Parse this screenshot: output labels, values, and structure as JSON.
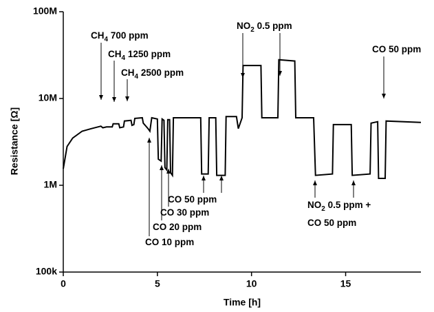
{
  "chart_data": {
    "type": "line",
    "x_label": "Time [h]",
    "y_label": "Resistance [Ω]",
    "xlim": [
      0,
      19
    ],
    "xticks": [
      0,
      5,
      10,
      15
    ],
    "ylim": [
      100000,
      100000000
    ],
    "log_y": true,
    "yticks": [
      {
        "value": 100000,
        "label": "100k"
      },
      {
        "value": 1000000,
        "label": "1M"
      },
      {
        "value": 10000000,
        "label": "10M"
      },
      {
        "value": 100000000,
        "label": "100M"
      }
    ],
    "series": [
      {
        "color": "#000000",
        "x": [
          0,
          0.2,
          0.5,
          1,
          1.5,
          2,
          2.1,
          2.3,
          2.6,
          2.65,
          2.95,
          3.0,
          3.2,
          3.25,
          3.6,
          3.65,
          3.75,
          3.8,
          4.2,
          4.25,
          4.5,
          4.6,
          4.7,
          5.0,
          5.05,
          5.2,
          5.25,
          5.35,
          5.4,
          5.5,
          5.55,
          5.65,
          5.7,
          5.8,
          5.85,
          7.3,
          7.35,
          7.7,
          7.75,
          8.1,
          8.15,
          8.6,
          8.65,
          9.2,
          9.3,
          9.5,
          9.55,
          10.5,
          10.55,
          11.4,
          11.45,
          12.3,
          12.35,
          13.3,
          13.4,
          14.3,
          14.35,
          15.3,
          15.35,
          16.3,
          16.35,
          16.7,
          16.75,
          17.1,
          17.15,
          19
        ],
        "values": [
          1550000,
          2800000,
          3500000,
          4200000,
          4500000,
          4800000,
          4600000,
          4700000,
          4700000,
          5100000,
          5100000,
          4600000,
          4700000,
          5500000,
          5600000,
          4900000,
          5000000,
          5900000,
          6000000,
          5200000,
          4500000,
          4200000,
          6000000,
          5800000,
          2000000,
          1900000,
          5800000,
          5600000,
          1600000,
          1500000,
          5700000,
          5700000,
          1400000,
          1300000,
          6000000,
          6000000,
          1350000,
          1350000,
          6000000,
          6000000,
          1300000,
          1300000,
          6200000,
          6200000,
          4500000,
          6000000,
          24000000,
          24000000,
          6000000,
          6000000,
          28000000,
          27000000,
          6000000,
          6000000,
          1300000,
          1350000,
          5000000,
          5000000,
          1300000,
          1350000,
          5200000,
          5400000,
          1200000,
          1200000,
          5500000,
          5300000
        ]
      }
    ],
    "annotations": [
      [
        "CH",
        "4",
        " 700 ppm"
      ],
      [
        "CH",
        "4",
        " 1250 ppm"
      ],
      [
        "CH",
        "4",
        " 2500 ppm"
      ],
      [
        "NO",
        "2",
        " 0.5 ppm"
      ],
      [
        "CO 50 ppm"
      ],
      [
        "CO 50 ppm"
      ],
      [
        "CO 30 ppm"
      ],
      [
        "CO 20 ppm"
      ],
      [
        "CO 10 ppm"
      ],
      [
        "NO",
        "2",
        " 0.5 ppm +"
      ],
      [
        "CO 50 ppm"
      ]
    ]
  }
}
